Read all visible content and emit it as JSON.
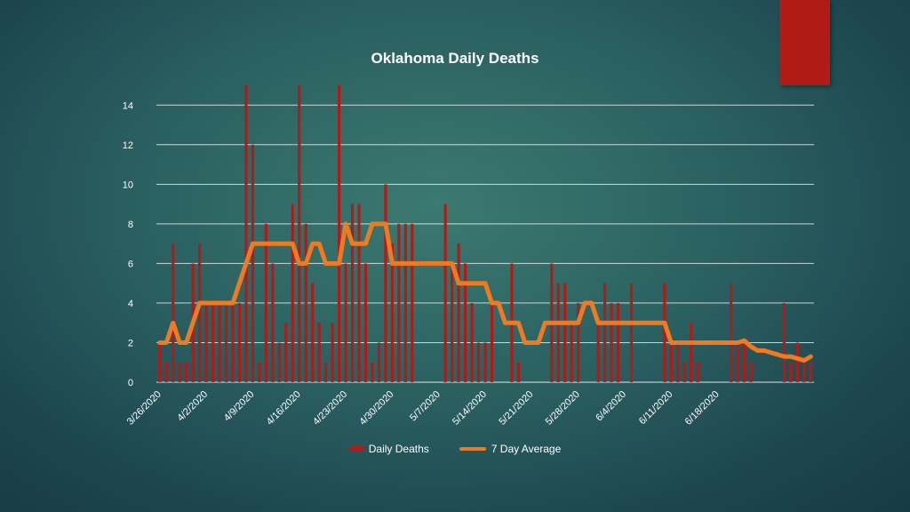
{
  "chart_data": {
    "type": "bar",
    "title": "Oklahoma Daily Deaths",
    "xlabel": "",
    "ylabel": "",
    "ylim": [
      0,
      15
    ],
    "yticks": [
      0,
      2,
      4,
      6,
      8,
      10,
      12,
      14
    ],
    "grid": true,
    "legend": "bottom",
    "x_tick_labels": [
      "3/26/2020",
      "4/2/2020",
      "4/9/2020",
      "4/16/2020",
      "4/23/2020",
      "4/30/2020",
      "5/7/2020",
      "5/14/2020",
      "5/21/2020",
      "5/28/2020",
      "6/4/2020",
      "6/11/2020",
      "6/18/2020"
    ],
    "x_tick_every": 7,
    "series": [
      {
        "name": "Daily Deaths",
        "kind": "bar",
        "color": "#b01a17",
        "values": [
          2,
          1,
          7,
          1,
          1,
          6,
          7,
          4,
          4,
          4,
          4,
          4,
          4,
          15,
          12,
          1,
          8,
          6,
          2,
          3,
          9,
          15,
          8,
          5,
          3,
          1,
          3,
          15,
          6,
          9,
          9,
          6,
          1,
          2,
          10,
          7,
          8,
          8,
          8,
          0,
          0,
          0,
          0,
          9,
          6,
          7,
          6,
          4,
          2,
          2,
          4,
          0,
          0,
          6,
          1,
          0,
          0,
          0,
          0,
          6,
          5,
          5,
          3,
          4,
          0,
          0,
          3,
          5,
          4,
          4,
          0,
          5,
          0,
          0,
          0,
          0,
          5,
          2,
          2,
          1,
          3,
          1,
          0,
          0,
          0,
          0,
          5,
          2,
          2,
          1,
          0,
          0,
          0,
          0,
          4,
          1,
          2,
          1,
          1
        ]
      },
      {
        "name": "7 Day Average",
        "kind": "line",
        "color": "#f07a22",
        "values": [
          2,
          2,
          3,
          2,
          2,
          3,
          4,
          4,
          4,
          4,
          4,
          4,
          5,
          6,
          7,
          7,
          7,
          7,
          7,
          7,
          7,
          6,
          6,
          7,
          7,
          6,
          6,
          6,
          8,
          7,
          7,
          7,
          8,
          8,
          8,
          6,
          6,
          6,
          6,
          6,
          6,
          6,
          6,
          6,
          6,
          5,
          5,
          5,
          5,
          5,
          4,
          4,
          3,
          3,
          3,
          2,
          2,
          2,
          3,
          3,
          3,
          3,
          3,
          3,
          4,
          4,
          3,
          3,
          3,
          3,
          3,
          3,
          3,
          3,
          3,
          3,
          3,
          2,
          2,
          2,
          2,
          2,
          2,
          2,
          2,
          2,
          2,
          2,
          2.1,
          1.8,
          1.6,
          1.6,
          1.5,
          1.4,
          1.3,
          1.3,
          1.2,
          1.1,
          1.3
        ]
      }
    ]
  }
}
